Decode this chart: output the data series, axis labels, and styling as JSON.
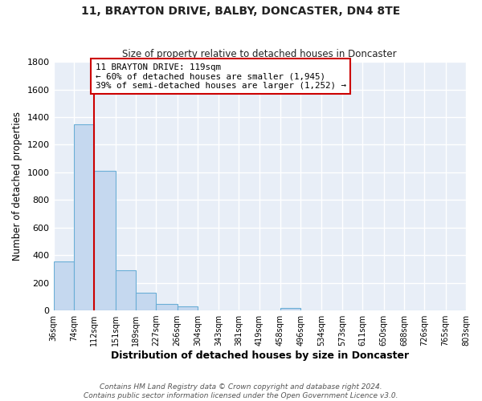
{
  "title": "11, BRAYTON DRIVE, BALBY, DONCASTER, DN4 8TE",
  "subtitle": "Size of property relative to detached houses in Doncaster",
  "xlabel": "Distribution of detached houses by size in Doncaster",
  "ylabel": "Number of detached properties",
  "bin_edges": [
    36,
    74,
    112,
    151,
    189,
    227,
    266,
    304,
    343,
    381,
    419,
    458,
    496,
    534,
    573,
    611,
    650,
    688,
    726,
    765,
    803
  ],
  "bin_labels": [
    "36sqm",
    "74sqm",
    "112sqm",
    "151sqm",
    "189sqm",
    "227sqm",
    "266sqm",
    "304sqm",
    "343sqm",
    "381sqm",
    "419sqm",
    "458sqm",
    "496sqm",
    "534sqm",
    "573sqm",
    "611sqm",
    "650sqm",
    "688sqm",
    "726sqm",
    "765sqm",
    "803sqm"
  ],
  "counts": [
    355,
    1350,
    1010,
    290,
    130,
    45,
    30,
    0,
    0,
    0,
    0,
    15,
    0,
    0,
    0,
    0,
    0,
    0,
    0,
    0
  ],
  "bar_color": "#c5d8ef",
  "bar_edge_color": "#6aaed6",
  "property_line_x": 112,
  "property_line_color": "#cc0000",
  "annotation_text": "11 BRAYTON DRIVE: 119sqm\n← 60% of detached houses are smaller (1,945)\n39% of semi-detached houses are larger (1,252) →",
  "annotation_box_color": "#ffffff",
  "annotation_box_edge_color": "#cc0000",
  "ylim": [
    0,
    1800
  ],
  "yticks": [
    0,
    200,
    400,
    600,
    800,
    1000,
    1200,
    1400,
    1600,
    1800
  ],
  "footer": "Contains HM Land Registry data © Crown copyright and database right 2024.\nContains public sector information licensed under the Open Government Licence v3.0.",
  "fig_bg_color": "#ffffff",
  "axes_bg_color": "#e8eef7",
  "grid_color": "#ffffff",
  "footer_color": "#555555"
}
